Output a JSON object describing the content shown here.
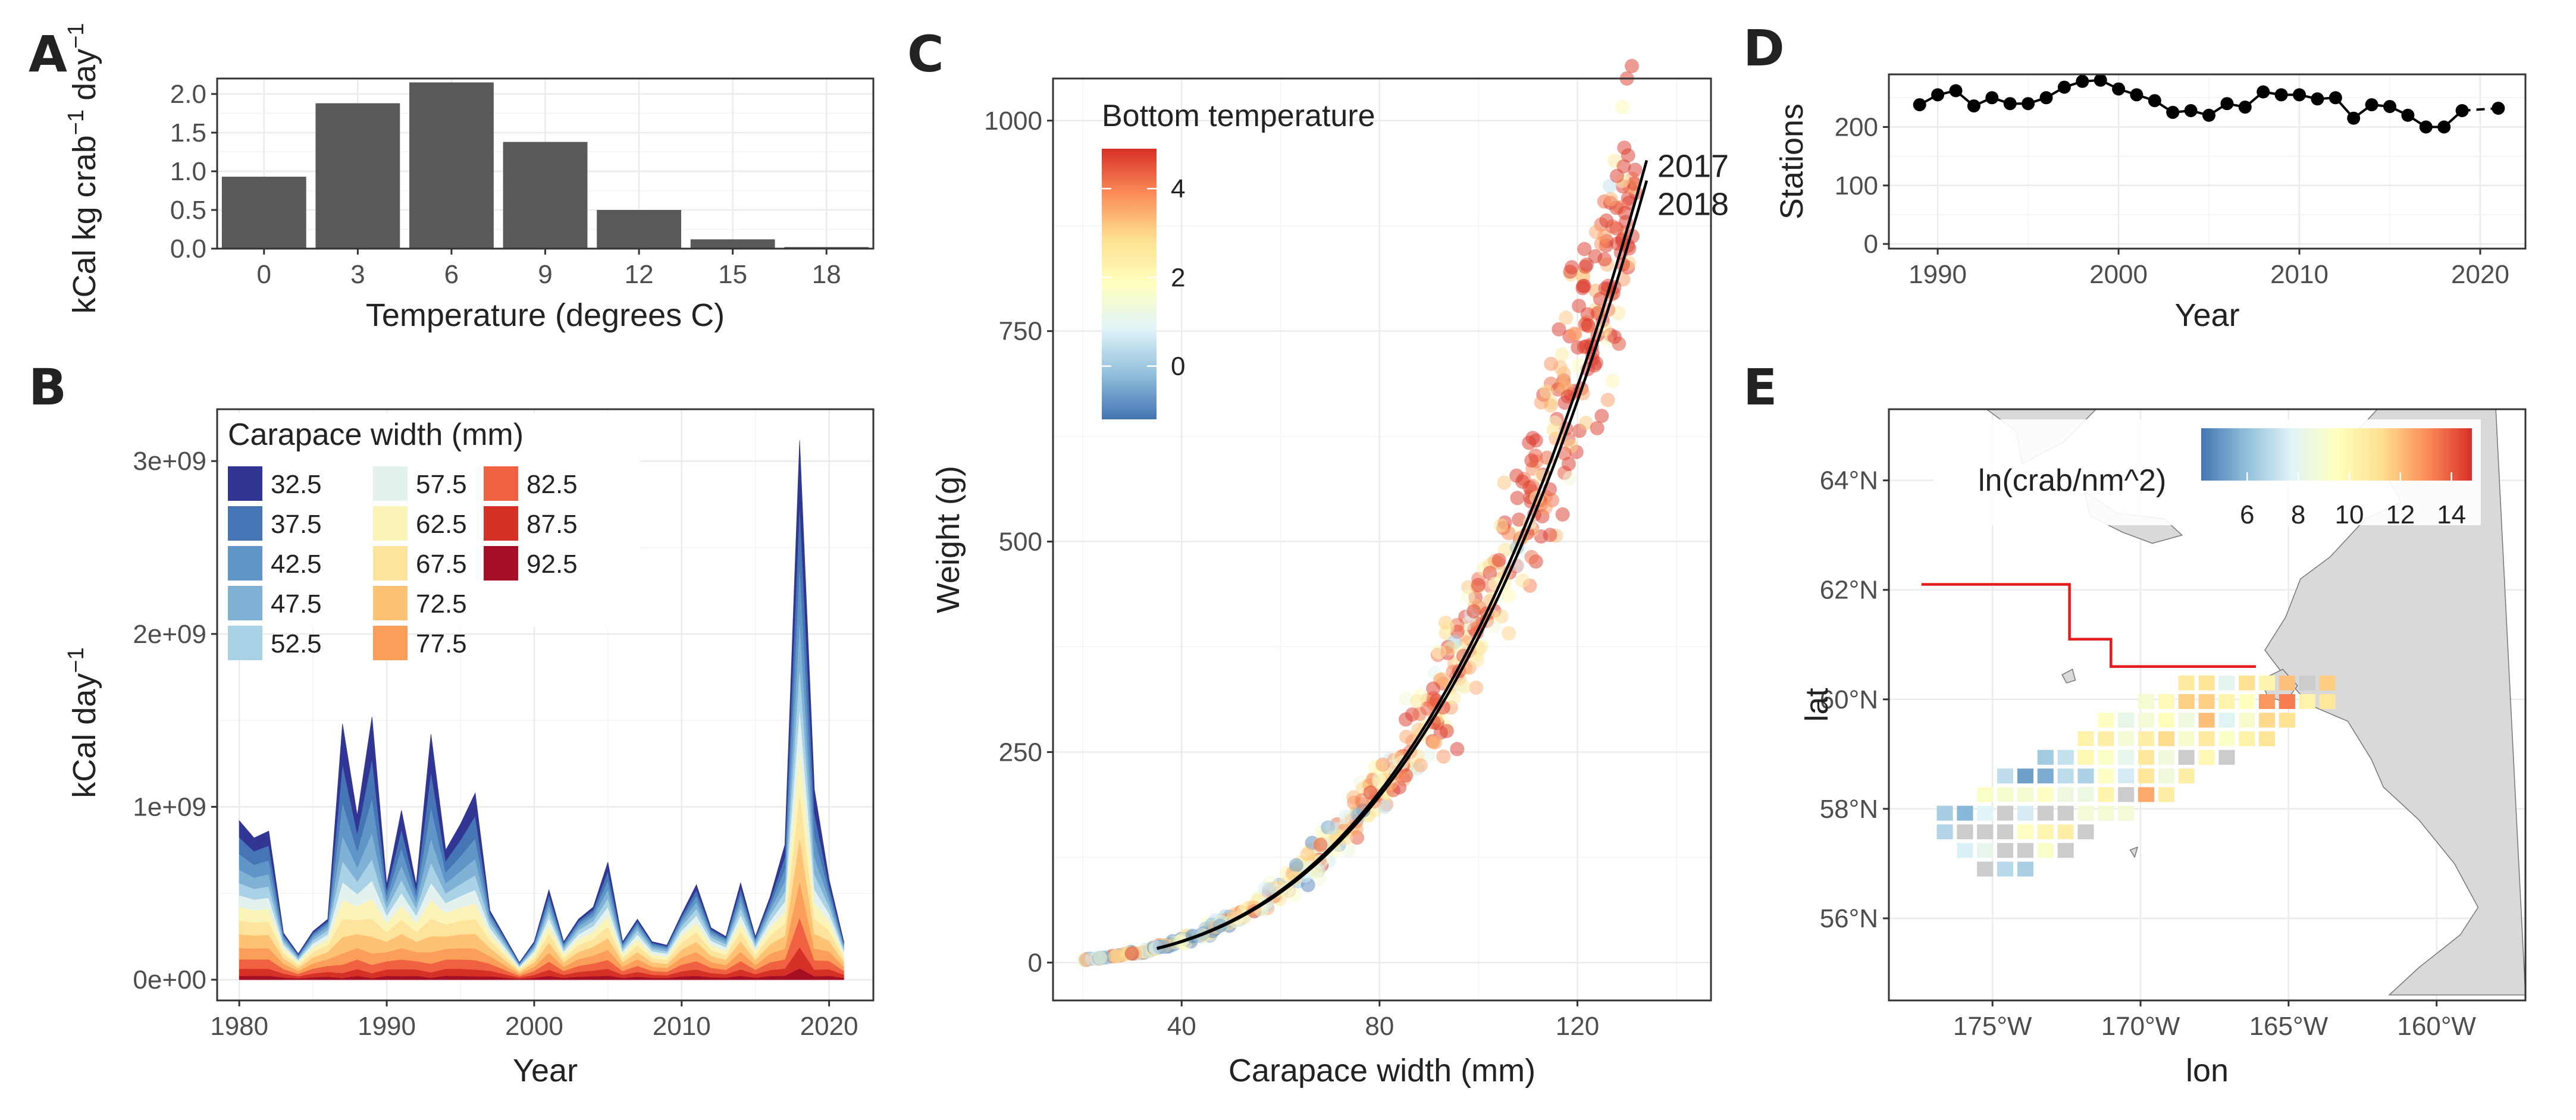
{
  "colors": {
    "bar": "#595959",
    "carapace_palette": [
      "#313695",
      "#4575b4",
      "#5f96c7",
      "#7fb2d5",
      "#a9d2e6",
      "#e3f2ef",
      "#fbf4b8",
      "#fde39b",
      "#fdc273",
      "#fb9e5a",
      "#ef6140",
      "#d63127",
      "#a50f26"
    ],
    "temp_scale": [
      "#4575b4",
      "#91bfdb",
      "#e0f3f8",
      "#ffffbf",
      "#fee090",
      "#fc8d59",
      "#d73027"
    ],
    "dens_scale": [
      "#4575b4",
      "#91bfdb",
      "#e0f3f8",
      "#ffffbf",
      "#fee090",
      "#fc8d59",
      "#d73027"
    ],
    "land": "#d9d9d9",
    "boundary": "#e41a1c",
    "nodata": "#cccccc"
  },
  "panels": {
    "a": "A",
    "b": "B",
    "c": "C",
    "d": "D",
    "e": "E"
  },
  "chart_data": [
    {
      "id": "A",
      "type": "bar",
      "title": "",
      "xlabel": "Temperature (degrees C)",
      "ylabel_main": "kCal kg  crab",
      "ylabel_sup1": "−1",
      "ylabel_mid": " day",
      "ylabel_sup2": "−1",
      "categories": [
        "0",
        "3",
        "6",
        "9",
        "12",
        "15",
        "18"
      ],
      "values": [
        0.93,
        1.88,
        2.15,
        1.38,
        0.5,
        0.12,
        0.02
      ],
      "ylim": [
        0,
        2.2
      ],
      "yticks": [
        0.0,
        0.5,
        1.0,
        1.5,
        2.0
      ],
      "ytick_labels": [
        "0.0",
        "0.5",
        "1.0",
        "1.5",
        "2.0"
      ],
      "grid": true
    },
    {
      "id": "B",
      "type": "area",
      "stacked": true,
      "xlabel": "Year",
      "ylabel_main": "kCal day",
      "ylabel_sup": "−1",
      "legend_title": "Carapace width (mm)",
      "legend_position": "top-left",
      "series_names": [
        "32.5",
        "37.5",
        "42.5",
        "47.5",
        "52.5",
        "57.5",
        "62.5",
        "67.5",
        "72.5",
        "77.5",
        "82.5",
        "87.5",
        "92.5"
      ],
      "x": [
        1980,
        1981,
        1982,
        1983,
        1984,
        1985,
        1986,
        1987,
        1988,
        1989,
        1990,
        1991,
        1992,
        1993,
        1994,
        1995,
        1996,
        1997,
        1998,
        1999,
        2000,
        2001,
        2002,
        2003,
        2004,
        2005,
        2006,
        2007,
        2008,
        2009,
        2010,
        2011,
        2012,
        2013,
        2014,
        2015,
        2016,
        2017,
        2018,
        2019,
        2020,
        2021
      ],
      "totals": [
        920000000.0,
        820000000.0,
        860000000.0,
        270000000.0,
        150000000.0,
        280000000.0,
        350000000.0,
        1480000000.0,
        950000000.0,
        1520000000.0,
        550000000.0,
        980000000.0,
        550000000.0,
        1420000000.0,
        750000000.0,
        900000000.0,
        1080000000.0,
        400000000.0,
        250000000.0,
        100000000.0,
        220000000.0,
        520000000.0,
        220000000.0,
        350000000.0,
        420000000.0,
        680000000.0,
        220000000.0,
        350000000.0,
        220000000.0,
        200000000.0,
        380000000.0,
        550000000.0,
        300000000.0,
        250000000.0,
        560000000.0,
        250000000.0,
        480000000.0,
        780000000.0,
        3120000000.0,
        1100000000.0,
        580000000.0,
        220000000.0
      ],
      "xlim": [
        1978.5,
        2023
      ],
      "ylim": [
        -120000000.0,
        3300000000.0
      ],
      "xticks": [
        1980,
        1990,
        2000,
        2010,
        2020
      ],
      "yticks": [
        0,
        1000000000.0,
        2000000000.0,
        3000000000.0
      ],
      "ytick_labels": [
        "0e+00",
        "1e+09",
        "2e+09",
        "3e+09"
      ]
    },
    {
      "id": "C",
      "type": "scatter",
      "xlabel": "Carapace width (mm)",
      "ylabel": "Weight (g)",
      "legend_title": "Bottom temperature",
      "color_ticks": [
        4,
        2,
        0
      ],
      "color_range": [
        -1.2,
        4.9
      ],
      "xlim": [
        14,
        147
      ],
      "ylim": [
        -45,
        1050
      ],
      "xticks": [
        40,
        80,
        120
      ],
      "yticks": [
        0,
        250,
        500,
        750,
        1000
      ],
      "model": "weight = a * width^b",
      "model_b": 3.0,
      "fit_lines": [
        {
          "label": "2017",
          "a": 0.000396,
          "x_range": [
            35,
            134
          ]
        },
        {
          "label": "2018",
          "a": 0.000386,
          "x_range": [
            35,
            134
          ]
        }
      ],
      "point_count": 650,
      "point_x_range": [
        20,
        132
      ]
    },
    {
      "id": "D",
      "type": "line",
      "xlabel": "Year",
      "ylabel": "Stations",
      "x": [
        1989,
        1990,
        1991,
        1992,
        1993,
        1994,
        1995,
        1996,
        1997,
        1998,
        1999,
        2000,
        2001,
        2002,
        2003,
        2004,
        2005,
        2006,
        2007,
        2008,
        2009,
        2010,
        2011,
        2012,
        2013,
        2014,
        2015,
        2016,
        2017,
        2018,
        2019,
        2021
      ],
      "y": [
        238,
        255,
        262,
        236,
        250,
        240,
        240,
        250,
        268,
        278,
        280,
        265,
        255,
        245,
        225,
        228,
        220,
        240,
        234,
        260,
        255,
        255,
        248,
        250,
        215,
        238,
        235,
        220,
        200,
        200,
        228,
        232
      ],
      "xlim": [
        1987.3,
        2022.5
      ],
      "ylim": [
        -8,
        290
      ],
      "xticks": [
        1990,
        2000,
        2010,
        2020
      ],
      "yticks": [
        0,
        100,
        200
      ],
      "gap_after": 2019
    },
    {
      "id": "E",
      "type": "heatmap",
      "xlabel": "lon",
      "ylabel": "lat",
      "legend_title": "ln(crab/nm^2)",
      "legend_ticks": [
        6,
        8,
        10,
        12,
        14
      ],
      "legend_range": [
        4.2,
        14.8
      ],
      "xlim": [
        -178.5,
        -157
      ],
      "ylim": [
        54.5,
        65.3
      ],
      "lon_ticks": [
        -175,
        -170,
        -165,
        -160
      ],
      "lon_tick_labels": [
        "175°W",
        "170°W",
        "165°W",
        "160°W"
      ],
      "lat_ticks": [
        56,
        58,
        60,
        62,
        64
      ],
      "lat_tick_labels": [
        "56°N",
        "58°N",
        "60°N",
        "62°N",
        "64°N"
      ],
      "cell_deg": {
        "lon": 0.68,
        "lat": 0.34
      },
      "region_boundary_lonlat": [
        [
          -177.4,
          62.1
        ],
        [
          -172.4,
          62.1
        ],
        [
          -172.4,
          61.1
        ],
        [
          -171.0,
          61.1
        ],
        [
          -171.0,
          60.6
        ],
        [
          -166.1,
          60.6
        ]
      ]
    }
  ]
}
